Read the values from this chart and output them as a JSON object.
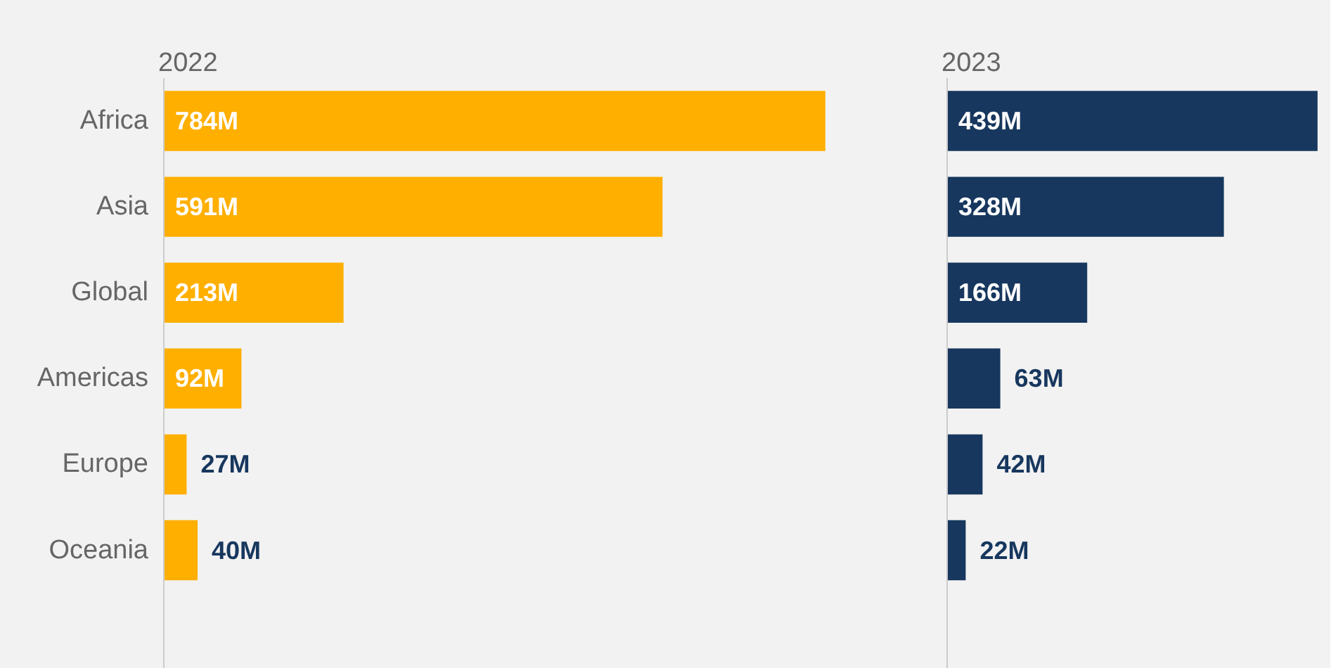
{
  "chart_data": [
    {
      "type": "bar",
      "orientation": "horizontal",
      "title": "2022",
      "categories": [
        "Africa",
        "Asia",
        "Global",
        "Americas",
        "Europe",
        "Oceania"
      ],
      "values": [
        784,
        591,
        213,
        92,
        27,
        40
      ],
      "value_labels": [
        "784M",
        "591M",
        "213M",
        "92M",
        "27M",
        "40M"
      ],
      "color": "#ffaf00"
    },
    {
      "type": "bar",
      "orientation": "horizontal",
      "title": "2023",
      "values": [
        439,
        328,
        166,
        63,
        42,
        22
      ],
      "value_labels": [
        "439M",
        "328M",
        "166M",
        "63M",
        "42M",
        "22M"
      ],
      "color": "#17375e"
    }
  ]
}
